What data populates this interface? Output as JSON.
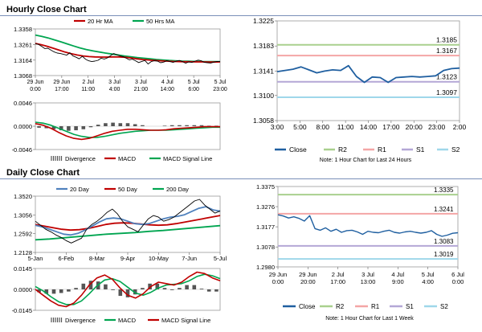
{
  "sections": {
    "hourly_title": "Hourly Close Chart",
    "daily_title": "Daily Close Chart"
  },
  "colors": {
    "price": "#000000",
    "ma_red": "#c00000",
    "ma_green": "#00a550",
    "ma_blue": "#4f81bd",
    "macd_red": "#c00000",
    "signal_green": "#00a550",
    "divergence": "#555555",
    "close": "#1f5fa0",
    "r2": "#a9d08e",
    "r1": "#f4a6a6",
    "s1": "#b4a7d6",
    "s2": "#9fd7ea",
    "frame": "#999999"
  },
  "chart_data": [
    {
      "id": "hourly_price",
      "type": "line",
      "y_ticks": [
        "1.3358",
        "1.3261",
        "1.3164",
        "1.3068"
      ],
      "ylim": [
        1.3068,
        1.3358
      ],
      "x_ticks": [
        "29 Jun\n0:00",
        "29 Jun\n17:00",
        "2 Jul\n11:00",
        "3 Jul\n4:00",
        "3 Jul\n21:00",
        "4 Jul\n14:00",
        "5 Jul\n6:00",
        "5 Jul\n23:00"
      ],
      "legend": [
        "20 Hr MA",
        "50 Hrs MA"
      ],
      "series": [
        {
          "name": "Close",
          "values": [
            1.3265,
            1.3262,
            1.325,
            1.3236,
            1.3238,
            1.3226,
            1.3215,
            1.3208,
            1.3205,
            1.32,
            1.3195,
            1.321,
            1.319,
            1.3182,
            1.3172,
            1.3188,
            1.317,
            1.316,
            1.3155,
            1.3158,
            1.3163,
            1.3176,
            1.3171,
            1.3178,
            1.3192,
            1.3205,
            1.3198,
            1.319,
            1.3186,
            1.3176,
            1.3166,
            1.317,
            1.316,
            1.3149,
            1.3156,
            1.3162,
            1.314,
            1.3155,
            1.316,
            1.3158,
            1.3148,
            1.3152,
            1.316,
            1.3155,
            1.315,
            1.3158,
            1.3162,
            1.3155,
            1.3145,
            1.3153,
            1.315,
            1.3158,
            1.3164,
            1.316,
            1.315,
            1.3148,
            1.3146,
            1.3152,
            1.3156,
            1.3155
          ]
        },
        {
          "name": "20 Hr MA",
          "values": [
            1.3268,
            1.326,
            1.325,
            1.3238,
            1.3226,
            1.3214,
            1.3204,
            1.3196,
            1.319,
            1.3186,
            1.3184,
            1.3183,
            1.3183,
            1.3184,
            1.3184,
            1.3182,
            1.3178,
            1.3172,
            1.3168,
            1.3165,
            1.3162,
            1.316,
            1.3158,
            1.3156,
            1.3155,
            1.3154,
            1.3154,
            1.3153,
            1.3153,
            1.3152,
            1.3152,
            1.3153
          ]
        },
        {
          "name": "50 Hrs MA",
          "values": [
            1.332,
            1.3312,
            1.3302,
            1.329,
            1.3278,
            1.3265,
            1.3252,
            1.324,
            1.323,
            1.3222,
            1.3215,
            1.3208,
            1.3202,
            1.3196,
            1.319,
            1.3185,
            1.318,
            1.3176,
            1.3172,
            1.3168,
            1.3165,
            1.3162,
            1.316,
            1.3158,
            1.3157,
            1.3156,
            1.3155,
            1.3155,
            1.3155,
            1.3155
          ]
        }
      ]
    },
    {
      "id": "hourly_macd",
      "type": "line",
      "y_ticks": [
        "0.0046",
        "0.0000",
        "-0.0046"
      ],
      "ylim": [
        -0.0046,
        0.0046
      ],
      "legend": [
        "Divergence",
        "MACD",
        "MACD Signal Line"
      ],
      "series": [
        {
          "name": "MACD",
          "values": [
            0.0005,
            0.0002,
            -0.0004,
            -0.0012,
            -0.0019,
            -0.0024,
            -0.0026,
            -0.0024,
            -0.0019,
            -0.0014,
            -0.001,
            -0.0008,
            -0.0006,
            -0.0006,
            -0.0007,
            -0.0008,
            -0.0008,
            -0.0007,
            -0.0005,
            -0.0004,
            -0.0003,
            -0.0002,
            -0.0001,
            -0.0001,
            -0.0001
          ]
        },
        {
          "name": "MACD Signal Line",
          "values": [
            0.0008,
            0.0006,
            0.0002,
            -0.0004,
            -0.001,
            -0.0016,
            -0.002,
            -0.0022,
            -0.0022,
            -0.002,
            -0.0017,
            -0.0014,
            -0.0012,
            -0.001,
            -0.0009,
            -0.0008,
            -0.0008,
            -0.0008,
            -0.0007,
            -0.0006,
            -0.0005,
            -0.0004,
            -0.0003,
            -0.0002,
            -0.0002
          ]
        },
        {
          "name": "Divergence",
          "values": [
            -0.0003,
            -0.0004,
            -0.0006,
            -0.0008,
            -0.0009,
            -0.0008,
            -0.0006,
            -0.0002,
            0.0003,
            0.0006,
            0.0007,
            0.0006,
            0.0006,
            0.0004,
            0.0002,
            0.0,
            0.0,
            0.0001,
            0.0002,
            0.0002,
            0.0002,
            0.0002,
            0.0002,
            0.0001,
            0.0001
          ]
        }
      ]
    },
    {
      "id": "hourly_pivot",
      "type": "line",
      "y_ticks": [
        "1.3225",
        "1.3183",
        "1.3141",
        "1.3100",
        "1.3058"
      ],
      "ylim": [
        1.3058,
        1.3225
      ],
      "x_ticks": [
        "3:00",
        "5:00",
        "8:00",
        "11:00",
        "14:00",
        "17:00",
        "20:00",
        "23:00",
        "2:00"
      ],
      "legend": [
        "Close",
        "R2",
        "R1",
        "S1",
        "S2"
      ],
      "note": "Note: 1 Hour Chart for Last 24 Hours",
      "levels": [
        {
          "name": "R2",
          "value": 1.3185,
          "label": "1.3185"
        },
        {
          "name": "R1",
          "value": 1.3167,
          "label": "1.3167"
        },
        {
          "name": "S1",
          "value": 1.3123,
          "label": "1.3123"
        },
        {
          "name": "S2",
          "value": 1.3097,
          "label": "1.3097"
        }
      ],
      "series": [
        {
          "name": "Close",
          "values": [
            1.314,
            1.3142,
            1.3144,
            1.3148,
            1.3143,
            1.3138,
            1.3141,
            1.3143,
            1.3142,
            1.315,
            1.3132,
            1.3122,
            1.3131,
            1.313,
            1.3122,
            1.313,
            1.3131,
            1.3132,
            1.3131,
            1.3132,
            1.3133,
            1.3142,
            1.3145,
            1.3146
          ]
        }
      ]
    },
    {
      "id": "daily_price",
      "type": "line",
      "y_ticks": [
        "1.3520",
        "1.3056",
        "1.2592",
        "1.2128"
      ],
      "ylim": [
        1.2128,
        1.352
      ],
      "x_ticks": [
        "5-Jan",
        "6-Feb",
        "8-Mar",
        "9-Apr",
        "10-May",
        "7-Jun",
        "5-Jul"
      ],
      "legend": [
        "20 Day",
        "50 Day",
        "200 Day"
      ],
      "series": [
        {
          "name": "Close",
          "values": [
            1.29,
            1.28,
            1.27,
            1.264,
            1.256,
            1.25,
            1.242,
            1.236,
            1.242,
            1.248,
            1.27,
            1.282,
            1.29,
            1.3,
            1.312,
            1.32,
            1.308,
            1.29,
            1.276,
            1.27,
            1.264,
            1.28,
            1.296,
            1.304,
            1.3,
            1.29,
            1.294,
            1.3,
            1.31,
            1.32,
            1.33,
            1.34,
            1.344,
            1.33,
            1.32,
            1.31,
            1.315
          ]
        },
        {
          "name": "20 Day",
          "values": [
            1.28,
            1.276,
            1.27,
            1.264,
            1.258,
            1.256,
            1.26,
            1.268,
            1.278,
            1.288,
            1.296,
            1.298,
            1.296,
            1.29,
            1.284,
            1.282,
            1.284,
            1.29,
            1.296,
            1.3,
            1.302,
            1.306,
            1.314,
            1.322,
            1.326,
            1.318,
            1.315
          ]
        },
        {
          "name": "50 Day",
          "values": [
            1.282,
            1.278,
            1.274,
            1.27,
            1.268,
            1.269,
            1.272,
            1.277,
            1.282,
            1.285,
            1.286,
            1.285,
            1.283,
            1.281,
            1.28,
            1.281,
            1.284,
            1.288,
            1.292,
            1.296,
            1.3,
            1.304
          ]
        },
        {
          "name": "200 Day",
          "values": [
            1.244,
            1.246,
            1.249,
            1.252,
            1.255,
            1.258,
            1.26,
            1.262,
            1.265,
            1.267,
            1.27,
            1.273,
            1.276,
            1.279
          ]
        }
      ]
    },
    {
      "id": "daily_macd",
      "type": "line",
      "y_ticks": [
        "0.0145",
        "0.0000",
        "-0.0145"
      ],
      "ylim": [
        -0.0145,
        0.0145
      ],
      "legend": [
        "Divergence",
        "MACD",
        "MACD Signal Line"
      ],
      "series": [
        {
          "name": "MACD",
          "values": [
            0.0,
            -0.004,
            -0.008,
            -0.011,
            -0.012,
            -0.0095,
            -0.004,
            0.003,
            0.008,
            0.01,
            0.007,
            0.001,
            -0.004,
            -0.006,
            -0.003,
            0.002,
            0.005,
            0.004,
            0.003,
            0.005,
            0.009,
            0.012,
            0.011,
            0.008,
            0.006
          ]
        },
        {
          "name": "MACD Signal Line",
          "values": [
            0.002,
            -0.001,
            -0.005,
            -0.0085,
            -0.0105,
            -0.0105,
            -0.008,
            -0.003,
            0.0025,
            0.0065,
            0.0075,
            0.0055,
            0.0015,
            -0.0025,
            -0.004,
            -0.002,
            0.001,
            0.003,
            0.0035,
            0.004,
            0.006,
            0.009,
            0.0105,
            0.0095,
            0.0075
          ]
        },
        {
          "name": "Divergence",
          "values": [
            -0.002,
            -0.003,
            -0.003,
            -0.0025,
            -0.0015,
            0.001,
            0.004,
            0.006,
            0.0055,
            0.0035,
            -0.0005,
            -0.0045,
            -0.0055,
            -0.0035,
            0.001,
            0.004,
            0.004,
            0.001,
            -0.0005,
            0.001,
            0.003,
            0.003,
            0.0005,
            -0.0015,
            -0.0015
          ]
        }
      ]
    },
    {
      "id": "weekly_pivot",
      "type": "line",
      "y_ticks": [
        "1.3375",
        "1.3276",
        "1.3177",
        "1.3078",
        "1.2980"
      ],
      "ylim": [
        1.298,
        1.3375
      ],
      "x_ticks": [
        "29 Jun\n0:00",
        "29 Jun\n20:00",
        "2 Jul\n17:00",
        "3 Jul\n13:00",
        "4 Jul\n9:00",
        "5 Jul\n4:00",
        "6 Jul\n0:00"
      ],
      "legend": [
        "Close",
        "R2",
        "R1",
        "S1",
        "S2"
      ],
      "note": "Note: 1 Hour Chart for Last 1 Week",
      "levels": [
        {
          "name": "R2",
          "value": 1.3335,
          "label": "1.3335"
        },
        {
          "name": "R1",
          "value": 1.3241,
          "label": "1.3241"
        },
        {
          "name": "S1",
          "value": 1.3083,
          "label": "1.3083"
        },
        {
          "name": "S2",
          "value": 1.3019,
          "label": "1.3019"
        }
      ],
      "series": [
        {
          "name": "Close",
          "values": [
            1.3236,
            1.323,
            1.322,
            1.3226,
            1.3218,
            1.3205,
            1.3232,
            1.3168,
            1.316,
            1.3172,
            1.3155,
            1.3165,
            1.315,
            1.3158,
            1.316,
            1.3152,
            1.314,
            1.3155,
            1.315,
            1.3148,
            1.3155,
            1.316,
            1.315,
            1.3146,
            1.3152,
            1.3155,
            1.315,
            1.3146,
            1.315,
            1.3158,
            1.314,
            1.313,
            1.3136,
            1.3145,
            1.3148
          ]
        }
      ]
    }
  ]
}
